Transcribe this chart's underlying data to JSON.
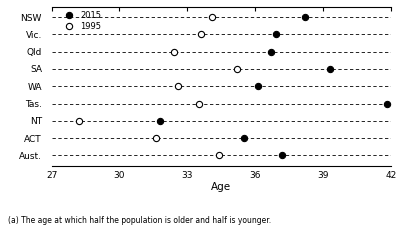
{
  "states": [
    "NSW",
    "Vic.",
    "Qld",
    "SA",
    "WA",
    "Tas.",
    "NT",
    "ACT",
    "Aust."
  ],
  "data_2015": [
    38.2,
    36.9,
    36.7,
    39.3,
    36.1,
    41.8,
    31.8,
    35.5,
    37.2
  ],
  "data_1995": [
    34.1,
    33.6,
    32.4,
    35.2,
    32.6,
    33.5,
    28.2,
    31.6,
    34.4
  ],
  "xlabel": "Age",
  "xlim": [
    27,
    42
  ],
  "xticks": [
    27,
    30,
    33,
    36,
    39,
    42
  ],
  "legend_2015": "2015",
  "legend_1995": "1995",
  "footnote": "(a) The age at which half the population is older and half is younger.",
  "figsize": [
    3.97,
    2.27
  ],
  "dpi": 100
}
